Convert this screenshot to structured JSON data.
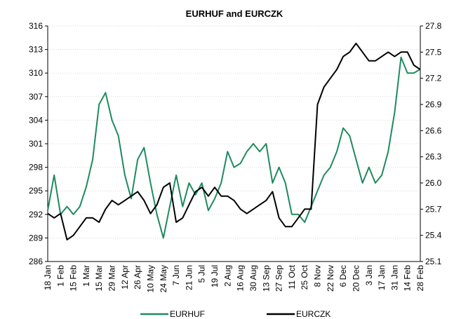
{
  "chart_data": {
    "type": "line",
    "title": "EURHUF and EURCZK",
    "categories": [
      "18 Jan",
      null,
      "1 Feb",
      null,
      "15 Feb",
      null,
      "1 Mar",
      null,
      "15 Mar",
      null,
      "29 Mar",
      null,
      "12 Apr",
      null,
      "26 Apr",
      null,
      "10 May",
      null,
      "24 May",
      null,
      "7 Jun",
      null,
      "21 Jun",
      null,
      "5 Jul",
      null,
      "19 Jul",
      null,
      "2 Aug",
      null,
      "16 Aug",
      null,
      "30 Aug",
      null,
      "13 Sep",
      null,
      "27 Sep",
      null,
      "11 Oct",
      null,
      "25 Oct",
      null,
      "8 Nov",
      null,
      "22 Nov",
      null,
      "6 Dec",
      null,
      "20 Dec",
      null,
      "3 Jan",
      null,
      "17 Jan",
      null,
      "31 Jan",
      null,
      "14 Feb",
      null,
      "28 Feb"
    ],
    "series": [
      {
        "name": "EURHUF",
        "color": "#1f8a5f",
        "values": [
          292.5,
          297,
          292,
          293,
          292,
          293,
          295.5,
          299,
          306,
          307.5,
          304,
          302,
          297,
          294,
          299,
          300.5,
          296,
          292,
          289,
          293,
          297,
          293,
          296,
          294.5,
          296,
          292.5,
          294,
          296,
          300,
          298,
          298.5,
          300,
          301,
          300,
          301,
          296,
          298,
          296,
          292,
          292,
          291,
          293,
          295,
          297,
          298,
          300,
          303,
          302,
          299,
          296,
          298,
          296,
          297,
          300,
          305,
          312,
          310,
          310,
          310.5
        ]
      },
      {
        "name": "EURCZK",
        "color": "#000000",
        "axis": "y2",
        "values": [
          25.65,
          25.6,
          25.65,
          25.35,
          25.4,
          25.5,
          25.6,
          25.6,
          25.55,
          25.7,
          25.8,
          25.75,
          25.8,
          25.85,
          25.9,
          25.8,
          25.65,
          25.75,
          25.95,
          26.0,
          25.55,
          25.6,
          25.75,
          25.9,
          25.95,
          25.85,
          25.95,
          25.85,
          25.85,
          25.8,
          25.7,
          25.65,
          25.7,
          25.75,
          25.8,
          25.9,
          25.6,
          25.5,
          25.5,
          25.6,
          25.7,
          25.7,
          26.9,
          27.1,
          27.2,
          27.3,
          27.45,
          27.5,
          27.6,
          27.5,
          27.4,
          27.4,
          27.45,
          27.5,
          27.45,
          27.5,
          27.5,
          27.35,
          27.3
        ]
      }
    ],
    "ylim": [
      286,
      316
    ],
    "yticks": [
      286,
      289,
      292,
      295,
      298,
      301,
      304,
      307,
      310,
      313,
      316
    ],
    "y2lim": [
      25.1,
      27.8
    ],
    "y2ticks": [
      25.1,
      25.4,
      25.7,
      {
        "value": 26,
        "label": "26.0"
      },
      26.3,
      26.6,
      26.9,
      27.2,
      27.5,
      27.8
    ],
    "grid": true,
    "legend": "bottom"
  }
}
